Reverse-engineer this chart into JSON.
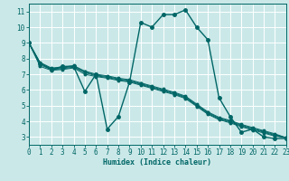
{
  "xlabel": "Humidex (Indice chaleur)",
  "bg_color": "#cbe8e8",
  "grid_color": "#ffffff",
  "line_color": "#006666",
  "xlim": [
    0,
    23
  ],
  "ylim": [
    2.5,
    11.5
  ],
  "xticks": [
    0,
    1,
    2,
    3,
    4,
    5,
    6,
    7,
    8,
    9,
    10,
    11,
    12,
    13,
    14,
    15,
    16,
    17,
    18,
    19,
    20,
    21,
    22,
    23
  ],
  "yticks": [
    3,
    4,
    5,
    6,
    7,
    8,
    9,
    10,
    11
  ],
  "lines": [
    {
      "x": [
        0,
        1,
        2,
        3,
        4,
        5,
        6,
        7,
        8,
        9,
        10,
        11,
        12,
        13,
        14,
        15,
        16,
        17,
        18,
        19,
        20,
        21,
        22,
        23
      ],
      "y": [
        9.0,
        7.7,
        7.3,
        7.5,
        7.5,
        5.9,
        7.0,
        3.5,
        4.3,
        6.5,
        10.3,
        10.0,
        10.8,
        10.8,
        11.1,
        10.0,
        9.2,
        5.5,
        4.3,
        3.3,
        3.5,
        3.0,
        2.9,
        2.9
      ],
      "lw": 1.0,
      "ms": 2.5
    },
    {
      "x": [
        0,
        1,
        2,
        3,
        4,
        5,
        6,
        7,
        8,
        9,
        10,
        11,
        12,
        13,
        14,
        15,
        16,
        17,
        18,
        19,
        20,
        21,
        22,
        23
      ],
      "y": [
        9.0,
        7.5,
        7.25,
        7.3,
        7.4,
        7.0,
        6.85,
        6.75,
        6.6,
        6.5,
        6.3,
        6.1,
        5.9,
        5.7,
        5.45,
        4.95,
        4.45,
        4.1,
        3.9,
        3.65,
        3.45,
        3.25,
        3.05,
        2.95
      ],
      "lw": 0.7,
      "ms": 1.8
    },
    {
      "x": [
        0,
        1,
        2,
        3,
        4,
        5,
        6,
        7,
        8,
        9,
        10,
        11,
        12,
        13,
        14,
        15,
        16,
        17,
        18,
        19,
        20,
        21,
        22,
        23
      ],
      "y": [
        9.0,
        7.6,
        7.3,
        7.35,
        7.45,
        7.1,
        6.9,
        6.8,
        6.65,
        6.55,
        6.35,
        6.15,
        5.95,
        5.75,
        5.5,
        5.0,
        4.5,
        4.15,
        3.95,
        3.7,
        3.5,
        3.3,
        3.1,
        2.95
      ],
      "lw": 0.7,
      "ms": 1.8
    },
    {
      "x": [
        0,
        1,
        2,
        3,
        4,
        5,
        6,
        7,
        8,
        9,
        10,
        11,
        12,
        13,
        14,
        15,
        16,
        17,
        18,
        19,
        20,
        21,
        22,
        23
      ],
      "y": [
        9.0,
        7.7,
        7.35,
        7.4,
        7.5,
        7.15,
        6.95,
        6.85,
        6.7,
        6.6,
        6.4,
        6.2,
        6.0,
        5.8,
        5.55,
        5.05,
        4.55,
        4.2,
        4.0,
        3.75,
        3.55,
        3.35,
        3.15,
        2.95
      ],
      "lw": 0.7,
      "ms": 1.8
    },
    {
      "x": [
        0,
        1,
        2,
        3,
        4,
        5,
        6,
        7,
        8,
        9,
        10,
        11,
        12,
        13,
        14,
        15,
        16,
        17,
        18,
        19,
        20,
        21,
        22,
        23
      ],
      "y": [
        9.0,
        7.75,
        7.4,
        7.45,
        7.55,
        7.2,
        7.0,
        6.9,
        6.75,
        6.65,
        6.45,
        6.25,
        6.05,
        5.85,
        5.6,
        5.1,
        4.6,
        4.25,
        4.05,
        3.8,
        3.6,
        3.4,
        3.2,
        2.95
      ],
      "lw": 0.7,
      "ms": 1.8
    }
  ]
}
